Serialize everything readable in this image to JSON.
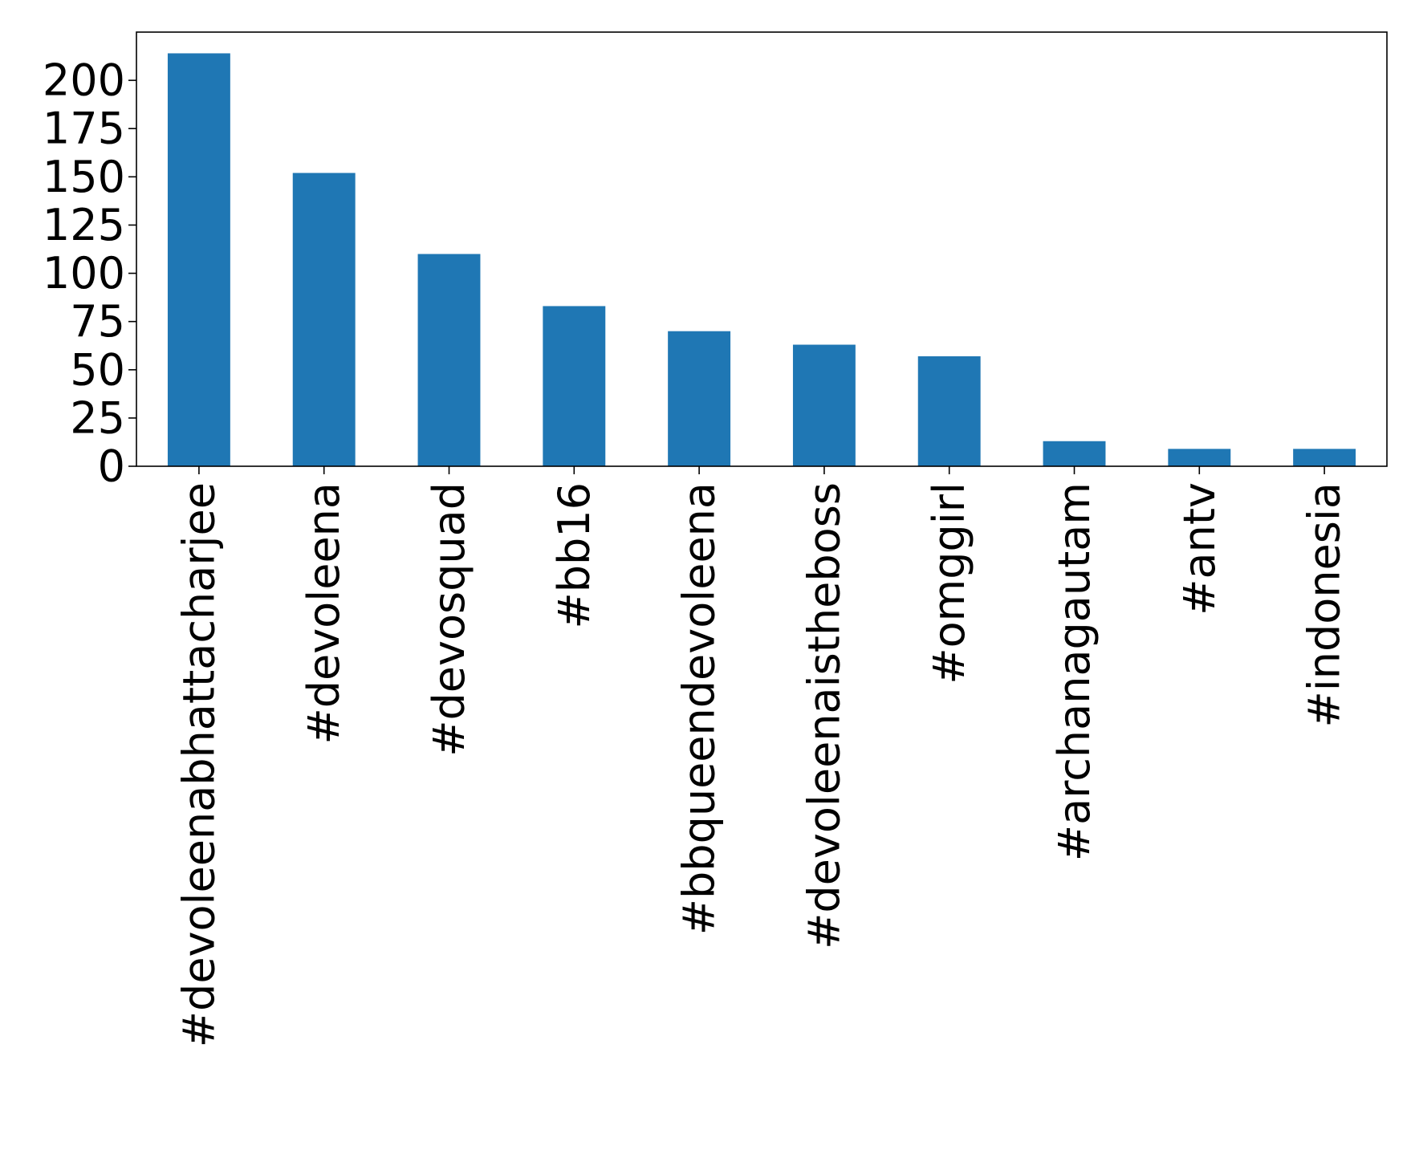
{
  "chart_data": {
    "type": "bar",
    "title": "",
    "xlabel": "",
    "ylabel": "",
    "categories": [
      "#devoleenabhattacharjee",
      "#devoleena",
      "#devosquad",
      "#bb16",
      "#bbqueendevoleena",
      "#devoleenaistheboss",
      "#omggirl",
      "#archanagautam",
      "#antv",
      "#indonesia"
    ],
    "values": [
      214,
      152,
      110,
      83,
      70,
      63,
      57,
      13,
      9,
      9
    ],
    "ylim": [
      0,
      225
    ],
    "yticks": [
      0,
      25,
      50,
      75,
      100,
      125,
      150,
      175,
      200
    ],
    "bar_color": "#1f77b4",
    "grid": false,
    "legend": "none"
  }
}
